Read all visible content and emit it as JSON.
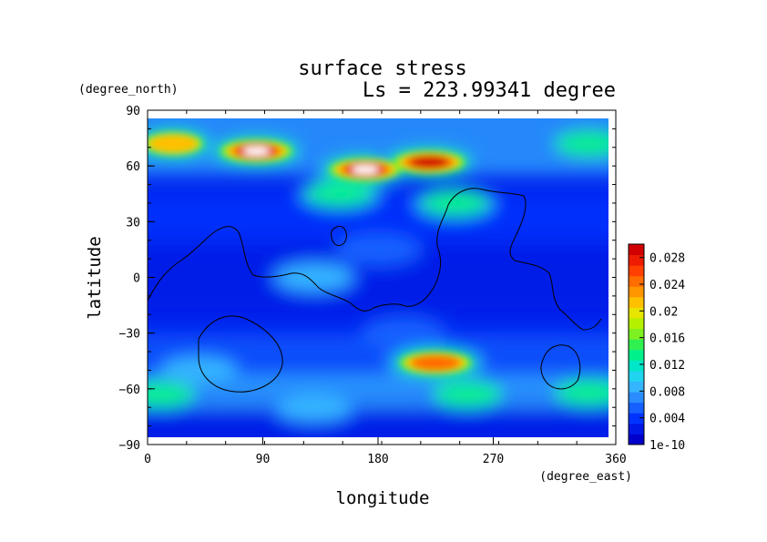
{
  "chart_data": {
    "type": "heatmap",
    "title": "surface stress",
    "subtitle": "Ls = 223.99341 degree",
    "xlabel": "longitude",
    "ylabel": "latitude",
    "xunits": "(degree_east)",
    "yunits": "(degree_north)",
    "xlim": [
      0,
      360
    ],
    "ylim": [
      -90,
      90
    ],
    "x_ticks": [
      "0",
      "90",
      "180",
      "270",
      "360"
    ],
    "y_ticks": [
      "90",
      "60",
      "30",
      "0",
      "−30",
      "−60",
      "−90"
    ],
    "colorbar": {
      "ticks": [
        "0.028",
        "0.024",
        "0.02",
        "0.016",
        "0.012",
        "0.008",
        "0.004",
        "1e-10"
      ],
      "range": [
        0,
        0.03
      ],
      "colors": [
        "#0000cc",
        "#0018e6",
        "#0033ff",
        "#1560ff",
        "#2a8cff",
        "#35b4ff",
        "#20d4f0",
        "#00e6c8",
        "#00f08c",
        "#30f050",
        "#7cf020",
        "#b4f000",
        "#e6e600",
        "#ffc000",
        "#ff9600",
        "#ff6c00",
        "#ff4000",
        "#ee1c00",
        "#d00000"
      ]
    },
    "hotspots": [
      {
        "lon": 85,
        "lat": 68,
        "value": 0.034
      },
      {
        "lon": 170,
        "lat": 58,
        "value": 0.033
      },
      {
        "lon": 220,
        "lat": 62,
        "value": 0.031
      },
      {
        "lon": 20,
        "lat": 72,
        "value": 0.02
      },
      {
        "lon": 345,
        "lat": 72,
        "value": 0.014
      },
      {
        "lon": 240,
        "lat": 40,
        "value": 0.012
      },
      {
        "lon": 150,
        "lat": 45,
        "value": 0.012
      },
      {
        "lon": 225,
        "lat": -46,
        "value": 0.024
      },
      {
        "lon": 250,
        "lat": -63,
        "value": 0.014
      },
      {
        "lon": 10,
        "lat": -63,
        "value": 0.012
      },
      {
        "lon": 345,
        "lat": -62,
        "value": 0.012
      },
      {
        "lon": 130,
        "lat": -70,
        "value": 0.009
      },
      {
        "lon": 40,
        "lat": -50,
        "value": 0.008
      },
      {
        "lon": 130,
        "lat": 0,
        "value": 0.008
      },
      {
        "lon": 180,
        "lat": 15,
        "value": 0.006
      },
      {
        "lon": 200,
        "lat": -30,
        "value": 0.006
      }
    ]
  }
}
